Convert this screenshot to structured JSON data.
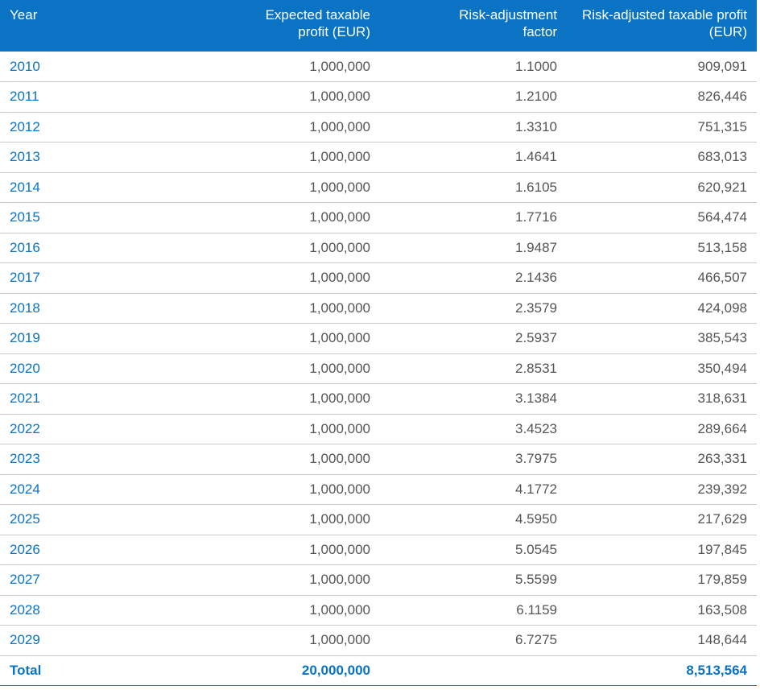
{
  "table": {
    "header": [
      "Year",
      "Expected taxable profit (EUR)",
      "Risk-adjustment factor",
      "Risk-adjusted taxable profit (EUR)"
    ],
    "rows": [
      [
        "2010",
        "1,000,000",
        "1.1000",
        "909,091"
      ],
      [
        "2011",
        "1,000,000",
        "1.2100",
        "826,446"
      ],
      [
        "2012",
        "1,000,000",
        "1.3310",
        "751,315"
      ],
      [
        "2013",
        "1,000,000",
        "1.4641",
        "683,013"
      ],
      [
        "2014",
        "1,000,000",
        "1.6105",
        "620,921"
      ],
      [
        "2015",
        "1,000,000",
        "1.7716",
        "564,474"
      ],
      [
        "2016",
        "1,000,000",
        "1.9487",
        "513,158"
      ],
      [
        "2017",
        "1,000,000",
        "2.1436",
        "466,507"
      ],
      [
        "2018",
        "1,000,000",
        "2.3579",
        "424,098"
      ],
      [
        "2019",
        "1,000,000",
        "2.5937",
        "385,543"
      ],
      [
        "2020",
        "1,000,000",
        "2.8531",
        "350,494"
      ],
      [
        "2021",
        "1,000,000",
        "3.1384",
        "318,631"
      ],
      [
        "2022",
        "1,000,000",
        "3.4523",
        "289,664"
      ],
      [
        "2023",
        "1,000,000",
        "3.7975",
        "263,331"
      ],
      [
        "2024",
        "1,000,000",
        "4.1772",
        "239,392"
      ],
      [
        "2025",
        "1,000,000",
        "4.5950",
        "217,629"
      ],
      [
        "2026",
        "1,000,000",
        "5.0545",
        "197,845"
      ],
      [
        "2027",
        "1,000,000",
        "5.5599",
        "179,859"
      ],
      [
        "2028",
        "1,000,000",
        "6.1159",
        "163,508"
      ],
      [
        "2029",
        "1,000,000",
        "6.7275",
        "148,644"
      ]
    ],
    "total": {
      "label": "Total",
      "expected": "20,000,000",
      "adjusted": "8,513,564"
    }
  }
}
